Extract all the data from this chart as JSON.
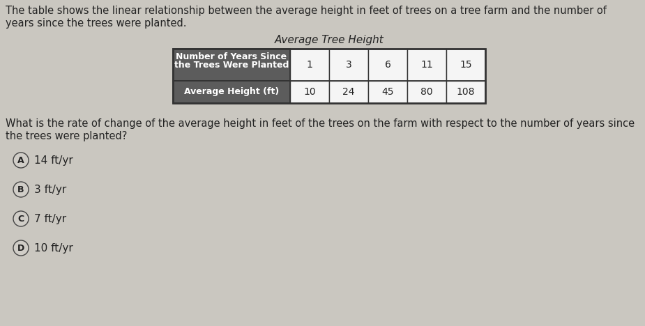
{
  "bg_color": "#cac7c0",
  "intro_text_line1": "The table shows the linear relationship between the average height in feet of trees on a tree farm and the number of",
  "intro_text_line2": "years since the trees were planted.",
  "table_title": "Average Tree Height",
  "row1_label_line1": "Number of Years Since",
  "row1_label_line2": "the Trees Were Planted",
  "row2_label": "Average Height (ft)",
  "row1_values": [
    "1",
    "3",
    "6",
    "11",
    "15"
  ],
  "row2_values": [
    "10",
    "24",
    "45",
    "80",
    "108"
  ],
  "table_header_bg": "#5c5c5c",
  "table_header_text": "#ffffff",
  "table_cell_bg": "#f5f5f5",
  "table_border_color": "#333333",
  "question_text_line1": "What is the rate of change of the average height in feet of the trees on the farm with respect to the number of years since",
  "question_text_line2": "the trees were planted?",
  "choices": [
    {
      "label": "A",
      "text": "14 ft/yr"
    },
    {
      "label": "B",
      "text": "3 ft/yr"
    },
    {
      "label": "C",
      "text": "7 ft/yr"
    },
    {
      "label": "D",
      "text": "10 ft/yr"
    }
  ],
  "text_color": "#222222",
  "choice_circle_bg": "#d0cdc7",
  "choice_circle_edge": "#444444",
  "font_size_intro": 10.5,
  "font_size_table_title": 11,
  "font_size_table_header": 9,
  "font_size_table_data": 10,
  "font_size_question": 10.5,
  "font_size_choices": 11
}
